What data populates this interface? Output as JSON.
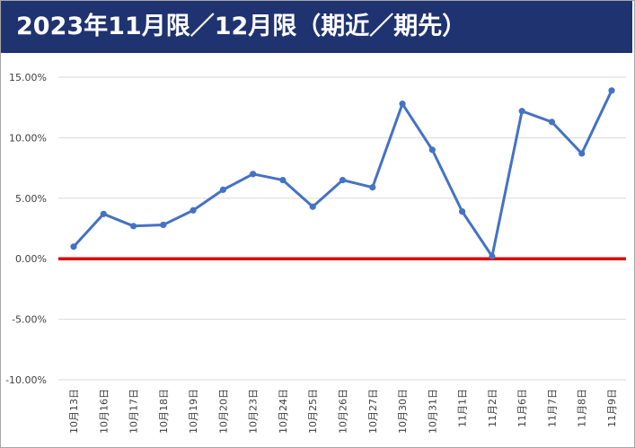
{
  "title": "2023年11月限／12月限（期近／期先）",
  "chart_data": {
    "type": "line",
    "title": "2023年11月限／12月限（期近／期先）",
    "xlabel": "",
    "ylabel": "",
    "categories": [
      "10月13日",
      "10月16日",
      "10月17日",
      "10月18日",
      "10月19日",
      "10月20日",
      "10月23日",
      "10月24日",
      "10月25日",
      "10月26日",
      "10月27日",
      "10月30日",
      "10月31日",
      "11月1日",
      "11月2日",
      "11月6日",
      "11月7日",
      "11月8日",
      "11月9日"
    ],
    "series": [
      {
        "values": [
          1.0,
          3.7,
          2.7,
          2.8,
          4.0,
          5.7,
          7.0,
          6.5,
          4.3,
          6.5,
          5.9,
          12.8,
          9.0,
          3.9,
          0.2,
          12.2,
          11.3,
          8.7,
          13.9
        ]
      }
    ],
    "ylim": [
      -10,
      15
    ],
    "yticks": [
      15,
      10,
      5,
      0,
      -5,
      -10
    ],
    "ytick_labels": [
      "15.00%",
      "10.00%",
      "5.00%",
      "0.00%",
      "-5.00%",
      "-10.00%"
    ],
    "reference_line": 0,
    "grid": true,
    "legend": "none",
    "colors": {
      "line": "#4472c4",
      "reference": "#e00000",
      "grid": "#d9d9d9",
      "title_bg": "#1f3370",
      "title_text": "#ffffff"
    }
  }
}
